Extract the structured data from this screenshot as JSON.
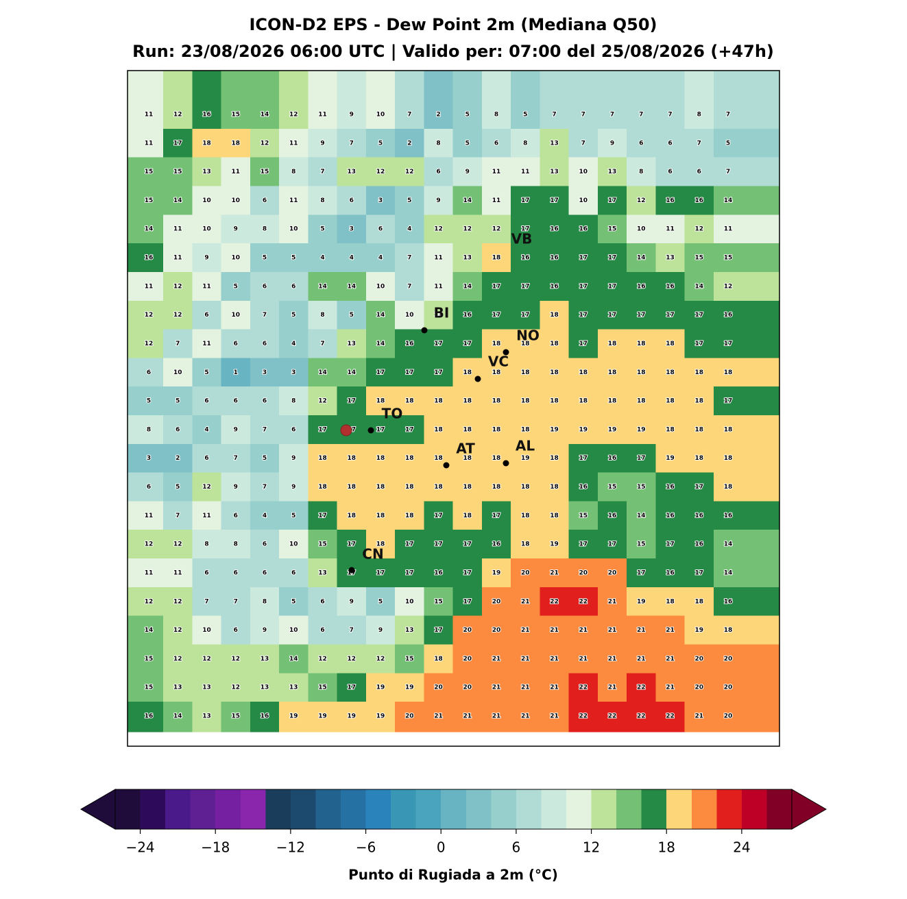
{
  "header": {
    "title": "ICON-D2 EPS - Dew Point 2m (Mediana Q50)",
    "subtitle": "Run: 23/08/2026 06:00 UTC | Valido per: 07:00 del 25/08/2026 (+47h)"
  },
  "grid": {
    "rows": [
      [
        11,
        12,
        16,
        15,
        14,
        12,
        11,
        9,
        10,
        7,
        2,
        5,
        8,
        5,
        7,
        7,
        7,
        7,
        7,
        8,
        7
      ],
      [
        11,
        17,
        18,
        18,
        12,
        11,
        9,
        7,
        5,
        2,
        8,
        5,
        6,
        8,
        13,
        7,
        9,
        6,
        6,
        7,
        5
      ],
      [
        15,
        15,
        13,
        11,
        15,
        8,
        7,
        13,
        12,
        12,
        6,
        9,
        11,
        11,
        13,
        10,
        13,
        8,
        6,
        6,
        7
      ],
      [
        15,
        14,
        10,
        10,
        6,
        11,
        8,
        6,
        3,
        5,
        9,
        14,
        11,
        17,
        17,
        10,
        17,
        12,
        16,
        16,
        14
      ],
      [
        14,
        11,
        10,
        9,
        8,
        10,
        5,
        3,
        6,
        4,
        12,
        12,
        12,
        17,
        16,
        16,
        15,
        10,
        11,
        12,
        11
      ],
      [
        16,
        11,
        9,
        10,
        5,
        5,
        4,
        4,
        4,
        7,
        11,
        13,
        18,
        16,
        16,
        17,
        17,
        14,
        13,
        15,
        15
      ],
      [
        11,
        12,
        11,
        5,
        6,
        6,
        14,
        14,
        10,
        7,
        11,
        14,
        17,
        17,
        16,
        17,
        17,
        16,
        16,
        14,
        12
      ],
      [
        12,
        12,
        6,
        10,
        7,
        5,
        8,
        5,
        14,
        10,
        13,
        16,
        17,
        17,
        18,
        17,
        17,
        17,
        17,
        17,
        16
      ],
      [
        12,
        7,
        11,
        6,
        6,
        4,
        7,
        13,
        14,
        16,
        17,
        17,
        18,
        18,
        18,
        17,
        18,
        18,
        18,
        17,
        17
      ],
      [
        6,
        10,
        5,
        1,
        3,
        3,
        14,
        14,
        17,
        17,
        17,
        18,
        18,
        18,
        18,
        18,
        18,
        18,
        18,
        18,
        18
      ],
      [
        5,
        5,
        6,
        6,
        6,
        8,
        12,
        17,
        18,
        18,
        18,
        18,
        18,
        18,
        18,
        18,
        18,
        18,
        18,
        18,
        17
      ],
      [
        8,
        6,
        4,
        9,
        7,
        6,
        17,
        17,
        17,
        17,
        18,
        18,
        18,
        18,
        19,
        19,
        19,
        19,
        18,
        18,
        18
      ],
      [
        3,
        2,
        6,
        7,
        5,
        9,
        18,
        18,
        18,
        18,
        18,
        18,
        18,
        19,
        18,
        17,
        16,
        17,
        19,
        18,
        18
      ],
      [
        6,
        5,
        12,
        9,
        7,
        9,
        18,
        18,
        18,
        18,
        18,
        18,
        18,
        18,
        18,
        16,
        15,
        15,
        16,
        17,
        18
      ],
      [
        11,
        7,
        11,
        6,
        4,
        5,
        17,
        18,
        18,
        18,
        17,
        18,
        17,
        18,
        18,
        15,
        16,
        14,
        16,
        16,
        16
      ],
      [
        12,
        12,
        8,
        8,
        6,
        10,
        15,
        17,
        18,
        17,
        17,
        17,
        16,
        18,
        19,
        17,
        17,
        15,
        17,
        16,
        14
      ],
      [
        11,
        11,
        6,
        6,
        6,
        6,
        13,
        17,
        17,
        17,
        16,
        17,
        19,
        20,
        21,
        20,
        20,
        17,
        16,
        17,
        14
      ],
      [
        12,
        12,
        7,
        7,
        8,
        5,
        6,
        9,
        5,
        10,
        15,
        17,
        20,
        21,
        22,
        22,
        21,
        19,
        18,
        18,
        16
      ],
      [
        14,
        12,
        10,
        6,
        9,
        10,
        6,
        7,
        9,
        13,
        17,
        20,
        20,
        21,
        21,
        21,
        21,
        21,
        21,
        19,
        18
      ],
      [
        15,
        12,
        12,
        12,
        13,
        14,
        12,
        12,
        12,
        15,
        18,
        20,
        21,
        21,
        21,
        21,
        21,
        21,
        21,
        20,
        20
      ],
      [
        15,
        13,
        13,
        12,
        13,
        13,
        15,
        17,
        19,
        19,
        20,
        20,
        21,
        21,
        21,
        22,
        21,
        22,
        21,
        20,
        20
      ],
      [
        16,
        14,
        13,
        15,
        16,
        19,
        19,
        19,
        19,
        20,
        21,
        21,
        21,
        21,
        21,
        22,
        22,
        22,
        22,
        21,
        20
      ]
    ]
  },
  "cities": [
    {
      "label": "VB"
    },
    {
      "label": "BI"
    },
    {
      "label": "NO"
    },
    {
      "label": "VC"
    },
    {
      "label": "TO"
    },
    {
      "label": "AT"
    },
    {
      "label": "AL"
    },
    {
      "label": "CN"
    }
  ],
  "colorbar": {
    "label": "Punto di Rugiada a 2m (°C)",
    "min": -26,
    "max": 28,
    "colors": [
      "#200c3a",
      "#2e0a5a",
      "#4a1a8a",
      "#5f2093",
      "#7520a0",
      "#8a26ac",
      "#1a3d5c",
      "#1b4a6e",
      "#22628e",
      "#2571a3",
      "#2a84bb",
      "#3a96b5",
      "#4aa4bd",
      "#68b4c3",
      "#80c1c7",
      "#97cfcd",
      "#b1dcd6",
      "#cbe9dd",
      "#e3f3df",
      "#bde39b",
      "#74c176",
      "#248a45",
      "#fed67a",
      "#fc8a3f",
      "#e1201e",
      "#bf0026",
      "#800026"
    ],
    "ticks": [
      {
        "value": -24,
        "label": "−24"
      },
      {
        "value": -18,
        "label": "−18"
      },
      {
        "value": -12,
        "label": "−12"
      },
      {
        "value": -6,
        "label": "−6"
      },
      0,
      6,
      12,
      18,
      24
    ]
  }
}
